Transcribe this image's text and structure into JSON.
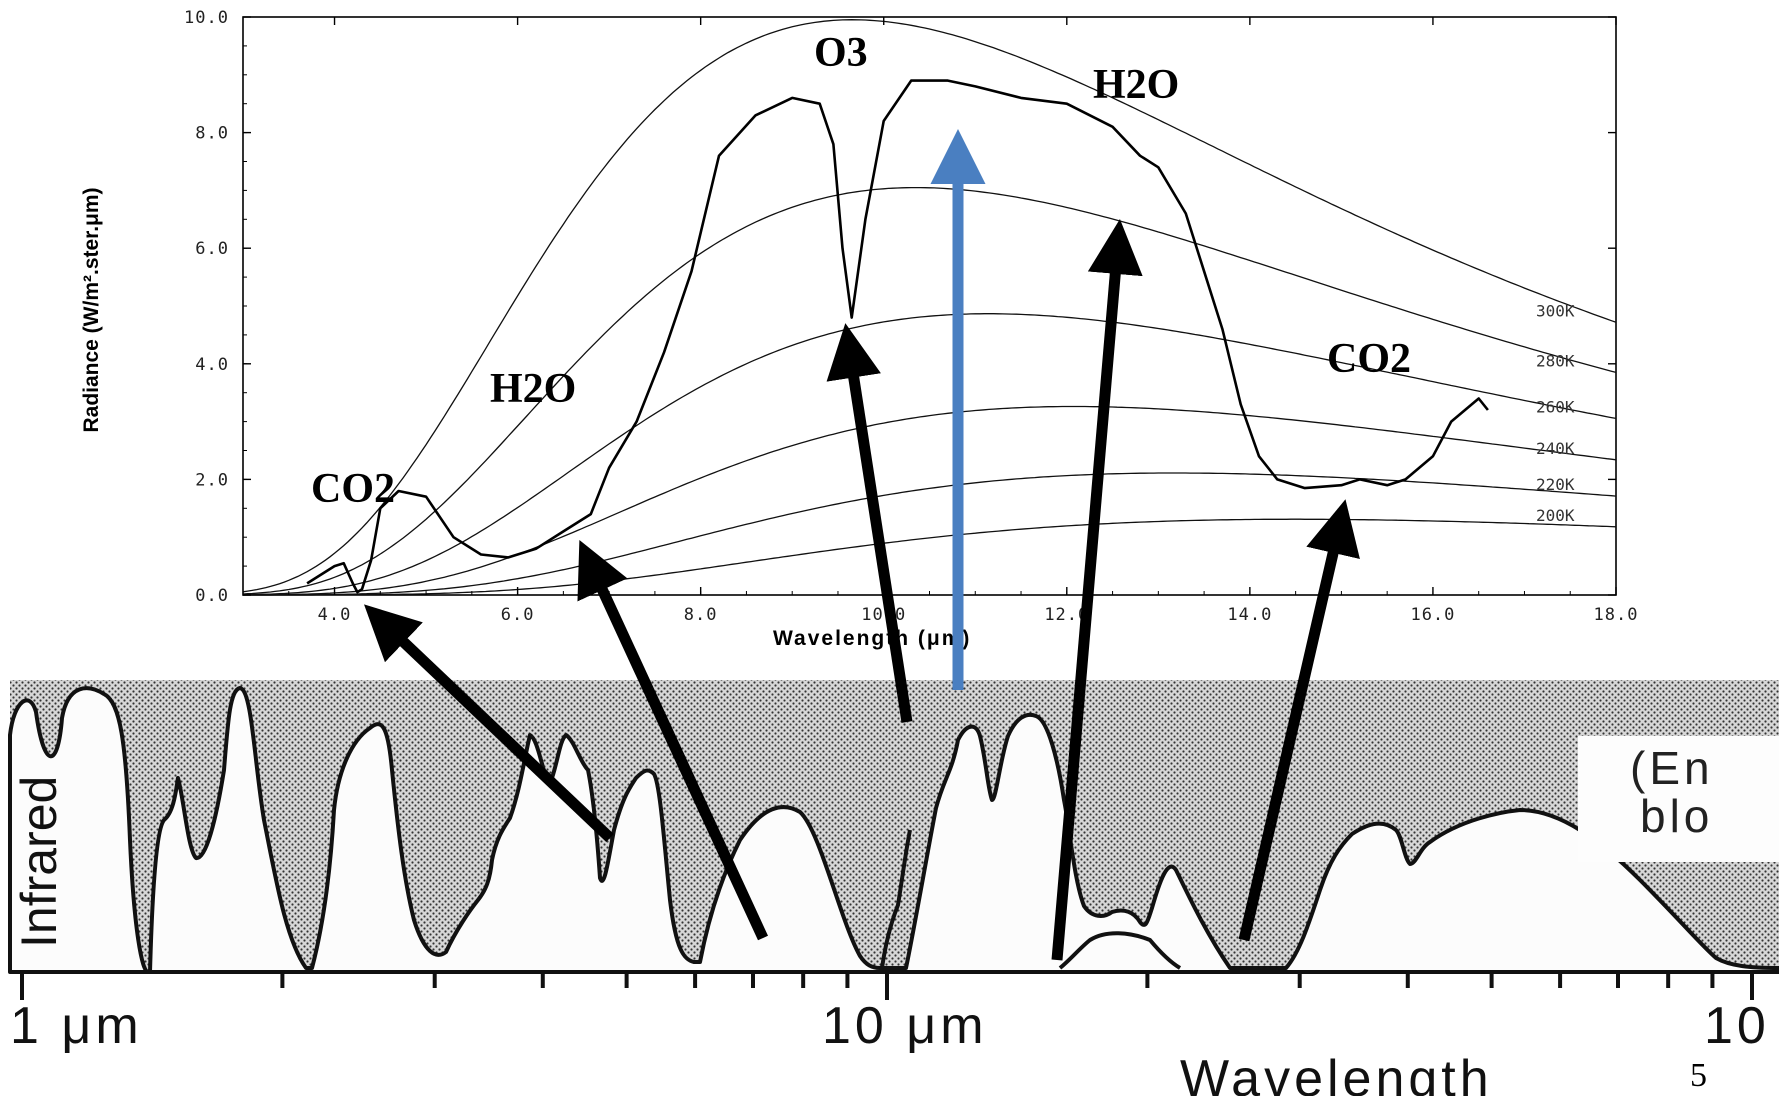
{
  "chart_data": [
    {
      "type": "line",
      "title": "",
      "xlabel": "Wavelength (μm)",
      "ylabel": "Radiance (W/m².ster.μm)",
      "xlim": [
        3.0,
        18.0
      ],
      "ylim": [
        0.0,
        10.0
      ],
      "xticks": [
        "4.0",
        "6.0",
        "8.0",
        "10.0",
        "12.0",
        "14.0",
        "16.0",
        "18.0"
      ],
      "yticks": [
        "0.0",
        "2.0",
        "4.0",
        "6.0",
        "8.0",
        "10.0"
      ],
      "grid": false,
      "blackbody_curves": [
        "300K",
        "280K",
        "260K",
        "240K",
        "220K",
        "200K"
      ],
      "series": [
        {
          "x": [
            3.7,
            4.0,
            4.1,
            4.2,
            4.25,
            4.3,
            4.4,
            4.5,
            4.7,
            5.0,
            5.3,
            5.6,
            5.9,
            6.2,
            6.5,
            6.8,
            7.0,
            7.3,
            7.6,
            7.9,
            8.2,
            8.6,
            9.0,
            9.3,
            9.45,
            9.55,
            9.65,
            9.8,
            10.0,
            10.3,
            10.7,
            11.0,
            11.5,
            12.0,
            12.5,
            12.8,
            13.0,
            13.3,
            13.5,
            13.7,
            13.9,
            14.1,
            14.3,
            14.6,
            15.0,
            15.2,
            15.5,
            15.7,
            16.0,
            16.2,
            16.5,
            16.6
          ],
          "values": [
            0.2,
            0.5,
            0.55,
            0.2,
            0.05,
            0.1,
            0.6,
            1.5,
            1.8,
            1.7,
            1.0,
            0.7,
            0.65,
            0.8,
            1.1,
            1.4,
            2.2,
            3.0,
            4.2,
            5.6,
            7.6,
            8.3,
            8.6,
            8.5,
            7.8,
            6.0,
            4.8,
            6.5,
            8.2,
            8.9,
            8.9,
            8.8,
            8.6,
            8.5,
            8.1,
            7.6,
            7.4,
            6.6,
            5.6,
            4.6,
            3.3,
            2.4,
            2.0,
            1.85,
            1.9,
            2.0,
            1.9,
            2.0,
            2.4,
            3.0,
            3.4,
            3.2
          ]
        }
      ],
      "annotations": [
        "CO2",
        "H2O",
        "O3",
        "H2O",
        "CO2"
      ]
    },
    {
      "type": "area",
      "title": "",
      "xlabel": "Wavelength",
      "ylabel": "Infrared",
      "xscale": "log",
      "xticks": [
        "1 μm",
        "10 μm",
        "10"
      ],
      "box_text": [
        "(En",
        "blo"
      ]
    }
  ],
  "page_number": "5"
}
